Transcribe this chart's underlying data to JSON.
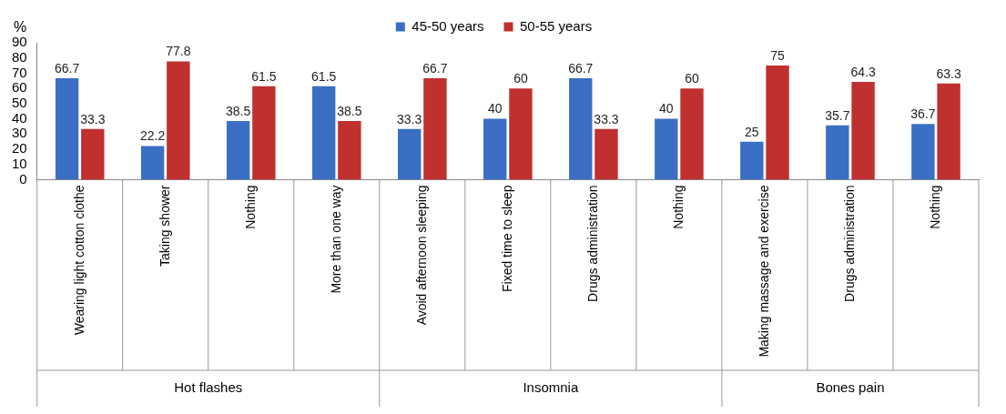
{
  "chart_data": {
    "type": "bar",
    "ylabel": "%",
    "categories": [
      "Wearing light cotton clothe",
      "Taking shower",
      "Nothing",
      "More than one way",
      "Avoid afternoon sleeping",
      "Fixed time to sleep",
      "Drugs administration",
      "Nothing",
      "Making massage and exercise",
      "Drugs administration",
      "Nothing"
    ],
    "series": [
      {
        "name": "45-50 years",
        "color": "#3a6fc4",
        "values": [
          66.7,
          22.2,
          38.5,
          61.5,
          33.3,
          40,
          66.7,
          40,
          25,
          35.7,
          36.7
        ]
      },
      {
        "name": "50-55 years",
        "color": "#c0302f",
        "values": [
          33.3,
          77.8,
          61.5,
          38.5,
          66.7,
          60,
          33.3,
          60,
          75,
          64.3,
          63.3
        ]
      }
    ],
    "ylim": [
      0,
      90
    ],
    "yticks": [
      0,
      10,
      20,
      30,
      40,
      50,
      60,
      70,
      80,
      90
    ],
    "annotations": [
      "Hot flashes",
      "Insomnia",
      "Bones pain"
    ],
    "data_labels": true,
    "grid": false,
    "legend": "top"
  }
}
